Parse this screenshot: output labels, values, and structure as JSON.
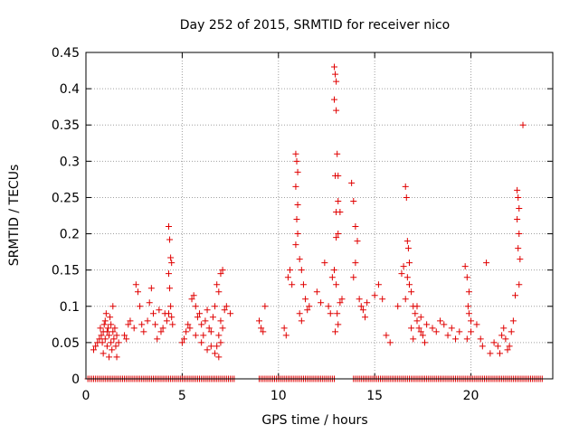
{
  "chart_data": {
    "type": "scatter",
    "title": "Day 252 of 2015, SRMTID for receiver nico",
    "xlabel": "GPS time / hours",
    "ylabel": "SRMTID / TECUs",
    "xlim": [
      0,
      24.25
    ],
    "ylim": [
      0,
      0.45
    ],
    "xticks": [
      0,
      5,
      10,
      15,
      20
    ],
    "yticks": [
      0,
      0.05,
      0.1,
      0.15,
      0.2,
      0.25,
      0.3,
      0.35,
      0.4,
      0.45
    ],
    "xtick_labels": [
      "0",
      "5",
      "10",
      "15",
      "20"
    ],
    "ytick_labels": [
      "0",
      "0.05",
      "0.1",
      "0.15",
      "0.2",
      "0.25",
      "0.3",
      "0.35",
      "0.4",
      "0.45"
    ],
    "grid": true,
    "marker": "plus",
    "series": [
      {
        "name": "SRMTID",
        "color": "#e00000",
        "points": [
          [
            0.4,
            0.04
          ],
          [
            0.5,
            0.045
          ],
          [
            0.6,
            0.05
          ],
          [
            0.7,
            0.055
          ],
          [
            0.75,
            0.07
          ],
          [
            0.8,
            0.06
          ],
          [
            0.85,
            0.05
          ],
          [
            0.9,
            0.065
          ],
          [
            0.95,
            0.075
          ],
          [
            1.0,
            0.08
          ],
          [
            1.0,
            0.055
          ],
          [
            1.05,
            0.09
          ],
          [
            1.1,
            0.065
          ],
          [
            1.1,
            0.045
          ],
          [
            1.15,
            0.07
          ],
          [
            1.2,
            0.06
          ],
          [
            1.25,
            0.085
          ],
          [
            1.3,
            0.05
          ],
          [
            1.3,
            0.075
          ],
          [
            1.35,
            0.04
          ],
          [
            1.4,
            0.065
          ],
          [
            1.4,
            0.1
          ],
          [
            1.45,
            0.055
          ],
          [
            1.5,
            0.07
          ],
          [
            1.55,
            0.045
          ],
          [
            1.6,
            0.06
          ],
          [
            1.6,
            0.03
          ],
          [
            1.7,
            0.05
          ],
          [
            0.9,
            0.035
          ],
          [
            1.2,
            0.03
          ],
          [
            2.0,
            0.06
          ],
          [
            2.1,
            0.055
          ],
          [
            2.2,
            0.075
          ],
          [
            2.3,
            0.08
          ],
          [
            2.5,
            0.07
          ],
          [
            2.6,
            0.13
          ],
          [
            2.7,
            0.12
          ],
          [
            2.8,
            0.1
          ],
          [
            2.9,
            0.075
          ],
          [
            3.0,
            0.065
          ],
          [
            3.2,
            0.08
          ],
          [
            3.3,
            0.105
          ],
          [
            3.4,
            0.125
          ],
          [
            3.5,
            0.09
          ],
          [
            3.6,
            0.075
          ],
          [
            3.7,
            0.055
          ],
          [
            3.8,
            0.095
          ],
          [
            3.9,
            0.065
          ],
          [
            4.0,
            0.07
          ],
          [
            4.1,
            0.09
          ],
          [
            4.2,
            0.08
          ],
          [
            4.3,
            0.21
          ],
          [
            4.35,
            0.192
          ],
          [
            4.4,
            0.167
          ],
          [
            4.45,
            0.16
          ],
          [
            4.3,
            0.145
          ],
          [
            4.35,
            0.125
          ],
          [
            4.4,
            0.1
          ],
          [
            4.45,
            0.085
          ],
          [
            4.5,
            0.075
          ],
          [
            4.3,
            0.09
          ],
          [
            5.0,
            0.05
          ],
          [
            5.1,
            0.055
          ],
          [
            5.2,
            0.065
          ],
          [
            5.3,
            0.075
          ],
          [
            5.4,
            0.07
          ],
          [
            5.5,
            0.11
          ],
          [
            5.6,
            0.115
          ],
          [
            5.7,
            0.1
          ],
          [
            5.8,
            0.085
          ],
          [
            5.9,
            0.09
          ],
          [
            6.0,
            0.075
          ],
          [
            6.1,
            0.06
          ],
          [
            6.2,
            0.08
          ],
          [
            6.3,
            0.095
          ],
          [
            6.4,
            0.07
          ],
          [
            6.5,
            0.065
          ],
          [
            6.6,
            0.085
          ],
          [
            6.7,
            0.1
          ],
          [
            6.8,
            0.13
          ],
          [
            6.9,
            0.12
          ],
          [
            7.0,
            0.145
          ],
          [
            7.1,
            0.15
          ],
          [
            7.0,
            0.08
          ],
          [
            6.9,
            0.06
          ],
          [
            6.8,
            0.045
          ],
          [
            6.7,
            0.035
          ],
          [
            6.9,
            0.03
          ],
          [
            7.0,
            0.05
          ],
          [
            7.1,
            0.07
          ],
          [
            7.2,
            0.095
          ],
          [
            7.3,
            0.1
          ],
          [
            7.5,
            0.09
          ],
          [
            5.7,
            0.06
          ],
          [
            6.0,
            0.05
          ],
          [
            6.3,
            0.04
          ],
          [
            6.5,
            0.045
          ],
          [
            9.0,
            0.08
          ],
          [
            9.1,
            0.07
          ],
          [
            9.2,
            0.065
          ],
          [
            9.3,
            0.1
          ],
          [
            10.3,
            0.07
          ],
          [
            10.4,
            0.06
          ],
          [
            10.5,
            0.14
          ],
          [
            10.6,
            0.15
          ],
          [
            10.7,
            0.13
          ],
          [
            10.9,
            0.31
          ],
          [
            10.95,
            0.3
          ],
          [
            11.0,
            0.285
          ],
          [
            10.9,
            0.265
          ],
          [
            11.0,
            0.24
          ],
          [
            10.95,
            0.22
          ],
          [
            11.0,
            0.2
          ],
          [
            10.9,
            0.185
          ],
          [
            11.1,
            0.165
          ],
          [
            11.2,
            0.15
          ],
          [
            11.3,
            0.13
          ],
          [
            11.4,
            0.11
          ],
          [
            11.5,
            0.095
          ],
          [
            11.6,
            0.1
          ],
          [
            11.2,
            0.08
          ],
          [
            11.1,
            0.09
          ],
          [
            12.0,
            0.12
          ],
          [
            12.2,
            0.105
          ],
          [
            12.4,
            0.16
          ],
          [
            12.6,
            0.1
          ],
          [
            12.7,
            0.09
          ],
          [
            12.8,
            0.14
          ],
          [
            12.9,
            0.43
          ],
          [
            12.95,
            0.42
          ],
          [
            13.0,
            0.41
          ],
          [
            12.9,
            0.385
          ],
          [
            13.0,
            0.37
          ],
          [
            13.05,
            0.31
          ],
          [
            12.95,
            0.28
          ],
          [
            13.1,
            0.28
          ],
          [
            13.0,
            0.23
          ],
          [
            13.1,
            0.245
          ],
          [
            13.2,
            0.23
          ],
          [
            13.1,
            0.2
          ],
          [
            13.0,
            0.195
          ],
          [
            12.9,
            0.15
          ],
          [
            13.0,
            0.13
          ],
          [
            13.05,
            0.09
          ],
          [
            13.1,
            0.075
          ],
          [
            12.95,
            0.065
          ],
          [
            13.2,
            0.105
          ],
          [
            13.3,
            0.11
          ],
          [
            13.8,
            0.27
          ],
          [
            13.9,
            0.245
          ],
          [
            14.0,
            0.21
          ],
          [
            14.1,
            0.19
          ],
          [
            14.0,
            0.16
          ],
          [
            13.9,
            0.14
          ],
          [
            14.2,
            0.11
          ],
          [
            14.3,
            0.1
          ],
          [
            14.4,
            0.095
          ],
          [
            14.5,
            0.085
          ],
          [
            14.6,
            0.105
          ],
          [
            15.0,
            0.115
          ],
          [
            15.2,
            0.13
          ],
          [
            15.4,
            0.11
          ],
          [
            15.6,
            0.06
          ],
          [
            15.8,
            0.05
          ],
          [
            16.2,
            0.1
          ],
          [
            16.4,
            0.145
          ],
          [
            16.5,
            0.155
          ],
          [
            16.6,
            0.265
          ],
          [
            16.65,
            0.25
          ],
          [
            16.7,
            0.19
          ],
          [
            16.75,
            0.18
          ],
          [
            16.8,
            0.16
          ],
          [
            16.7,
            0.14
          ],
          [
            16.8,
            0.13
          ],
          [
            16.9,
            0.12
          ],
          [
            17.0,
            0.1
          ],
          [
            17.1,
            0.09
          ],
          [
            17.2,
            0.08
          ],
          [
            17.3,
            0.07
          ],
          [
            17.4,
            0.065
          ],
          [
            17.5,
            0.06
          ],
          [
            17.6,
            0.05
          ],
          [
            17.7,
            0.075
          ],
          [
            17.0,
            0.055
          ],
          [
            17.2,
            0.1
          ],
          [
            17.4,
            0.085
          ],
          [
            16.9,
            0.07
          ],
          [
            16.6,
            0.11
          ],
          [
            18.0,
            0.07
          ],
          [
            18.2,
            0.065
          ],
          [
            18.4,
            0.08
          ],
          [
            18.6,
            0.075
          ],
          [
            18.8,
            0.06
          ],
          [
            19.0,
            0.07
          ],
          [
            19.2,
            0.055
          ],
          [
            19.4,
            0.065
          ],
          [
            19.7,
            0.155
          ],
          [
            19.8,
            0.14
          ],
          [
            19.9,
            0.12
          ],
          [
            19.85,
            0.1
          ],
          [
            19.9,
            0.09
          ],
          [
            20.0,
            0.065
          ],
          [
            19.8,
            0.055
          ],
          [
            20.0,
            0.08
          ],
          [
            20.3,
            0.075
          ],
          [
            20.5,
            0.055
          ],
          [
            20.6,
            0.045
          ],
          [
            20.8,
            0.16
          ],
          [
            21.0,
            0.035
          ],
          [
            21.2,
            0.05
          ],
          [
            21.4,
            0.045
          ],
          [
            21.5,
            0.035
          ],
          [
            21.6,
            0.06
          ],
          [
            21.7,
            0.07
          ],
          [
            21.8,
            0.055
          ],
          [
            21.9,
            0.04
          ],
          [
            22.0,
            0.045
          ],
          [
            22.1,
            0.065
          ],
          [
            22.2,
            0.08
          ],
          [
            22.3,
            0.115
          ],
          [
            22.4,
            0.26
          ],
          [
            22.45,
            0.25
          ],
          [
            22.5,
            0.235
          ],
          [
            22.4,
            0.22
          ],
          [
            22.5,
            0.2
          ],
          [
            22.45,
            0.18
          ],
          [
            22.55,
            0.165
          ],
          [
            22.5,
            0.13
          ],
          [
            22.7,
            0.35
          ]
        ],
        "zero_segments": [
          [
            0.1,
            7.7
          ],
          [
            9.0,
            12.9
          ],
          [
            13.9,
            15.5
          ],
          [
            15.6,
            23.7
          ]
        ]
      }
    ]
  }
}
